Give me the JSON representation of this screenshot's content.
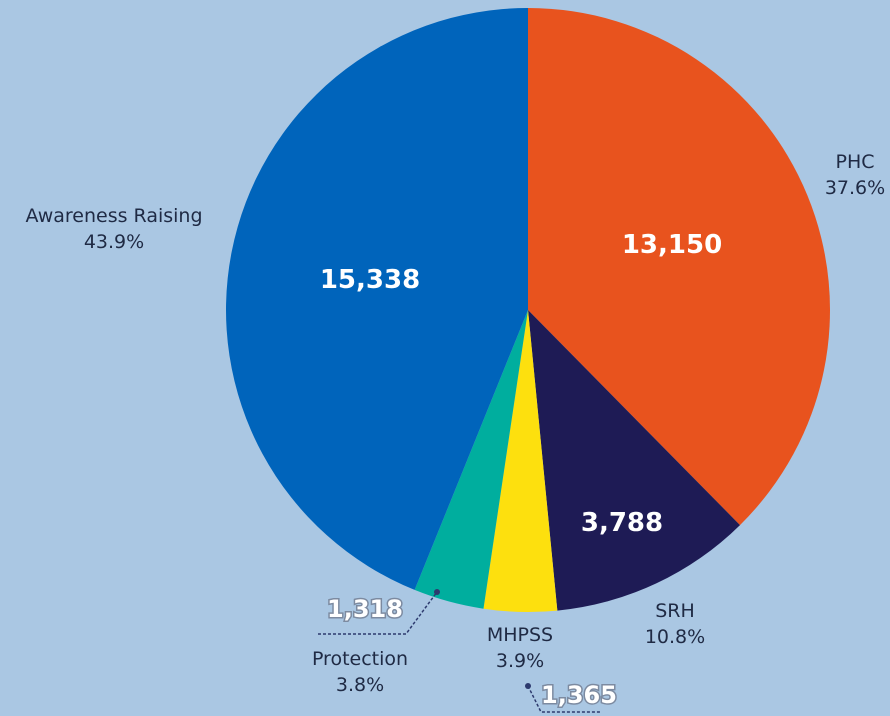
{
  "chart_data": {
    "type": "pie",
    "title": "",
    "slices": [
      {
        "name": "PHC",
        "value": 13150,
        "value_label": "13,150",
        "percent_label": "37.6%",
        "color": "#e8531e"
      },
      {
        "name": "SRH",
        "value": 3788,
        "value_label": "3,788",
        "percent_label": "10.8%",
        "color": "#1e1b55"
      },
      {
        "name": "MHPSS",
        "value": 1365,
        "value_label": "1,365",
        "percent_label": "3.9%",
        "color": "#fde00e"
      },
      {
        "name": "Protection",
        "value": 1318,
        "value_label": "1,318",
        "percent_label": "3.8%",
        "color": "#00ae9e"
      },
      {
        "name": "Awareness Raising",
        "value": 15338,
        "value_label": "15,338",
        "percent_label": "43.9%",
        "color": "#0064bb"
      }
    ],
    "start_angle": "12 o'clock",
    "direction": "clockwise",
    "leader_line_color": "#2d3a6e"
  }
}
